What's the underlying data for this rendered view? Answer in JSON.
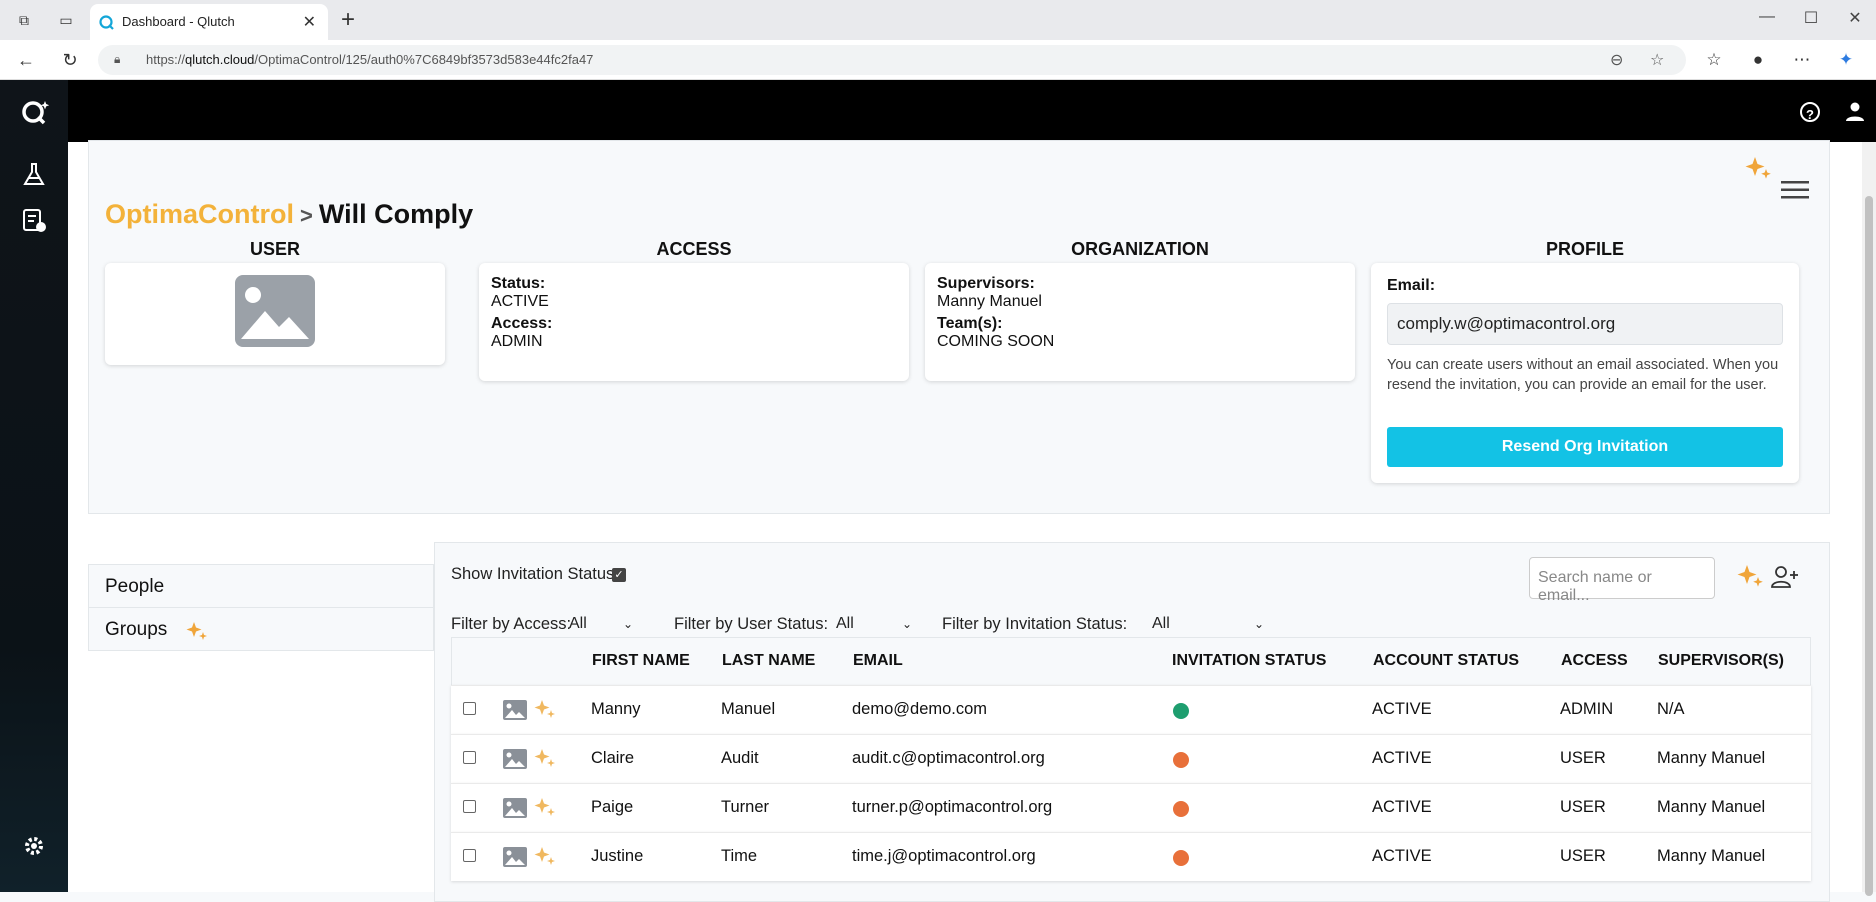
{
  "browser": {
    "tab_title": "Dashboard - Qlutch",
    "url_prefix": "https://",
    "url_domain": "qlutch.cloud",
    "url_path": "/OptimaControl/125/auth0%7C6849bf3573d583e44fc2fa47"
  },
  "breadcrumb": {
    "org": "OptimaControl",
    "separator": ">",
    "user": "Will Comply"
  },
  "sections": {
    "user": "USER",
    "access": "ACCESS",
    "organization": "ORGANIZATION",
    "profile": "PROFILE"
  },
  "access_card": {
    "status_label": "Status:",
    "status_value": "ACTIVE",
    "access_label": "Access:",
    "access_value": "ADMIN"
  },
  "org_card": {
    "supervisors_label": "Supervisors:",
    "supervisors_value": "Manny Manuel",
    "teams_label": "Team(s):",
    "teams_value": "COMING SOON"
  },
  "profile_card": {
    "email_label": "Email:",
    "email_value": "comply.w@optimacontrol.org",
    "help_text": "You can create users without an email associated. When you resend the invitation, you can provide an email for the user.",
    "resend_label": "Resend Org Invitation"
  },
  "left_nav": {
    "people": "People",
    "groups": "Groups"
  },
  "filters": {
    "show_invitation_label": "Show Invitation Status:",
    "show_invitation_checked": true,
    "access_label": "Filter by Access:",
    "access_value": "All",
    "user_status_label": "Filter by User Status:",
    "user_status_value": "All",
    "invitation_label": "Filter by Invitation Status:",
    "invitation_value": "All",
    "search_placeholder": "Search name or email..."
  },
  "table": {
    "headers": {
      "first": "FIRST NAME",
      "last": "LAST NAME",
      "email": "EMAIL",
      "invitation": "INVITATION STATUS",
      "account": "ACCOUNT STATUS",
      "access": "ACCESS",
      "supervisors": "SUPERVISOR(S)"
    },
    "rows": [
      {
        "first": "Manny",
        "last": "Manuel",
        "email": "demo@demo.com",
        "invitation_color": "#1e9e6f",
        "account": "ACTIVE",
        "access": "ADMIN",
        "supervisors": "N/A"
      },
      {
        "first": "Claire",
        "last": "Audit",
        "email": "audit.c@optimacontrol.org",
        "invitation_color": "#e8703a",
        "account": "ACTIVE",
        "access": "USER",
        "supervisors": "Manny Manuel"
      },
      {
        "first": "Paige",
        "last": "Turner",
        "email": "turner.p@optimacontrol.org",
        "invitation_color": "#e8703a",
        "account": "ACTIVE",
        "access": "USER",
        "supervisors": "Manny Manuel"
      },
      {
        "first": "Justine",
        "last": "Time",
        "email": "time.j@optimacontrol.org",
        "invitation_color": "#e8703a",
        "account": "ACTIVE",
        "access": "USER",
        "supervisors": "Manny Manuel"
      }
    ]
  },
  "colors": {
    "brand_orange": "#f3b23a",
    "accent_cyan": "#13c2e5",
    "sparkle": "#f0a53a"
  },
  "icons": [
    "sparkle-icon",
    "menu-icon",
    "image-placeholder-icon",
    "add-user-icon",
    "help-icon",
    "account-icon",
    "settings-icon",
    "lab-icon",
    "report-icon"
  ]
}
